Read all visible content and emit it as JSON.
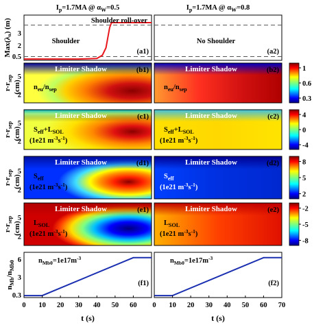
{
  "chart_data": {
    "type": "heatmap",
    "titles": {
      "left": {
        "main": "I",
        "sub": "p",
        "rest": "=1.7MA @ α",
        "sub2": "W",
        "tail": "=0.5"
      },
      "right": {
        "main": "I",
        "sub": "p",
        "rest": "=1.7MA @ α",
        "sub2": "W",
        "tail": "=0.8"
      }
    },
    "x_axis": {
      "label": "t (s)",
      "range": [
        0,
        70
      ],
      "ticks_left": [
        "0",
        "10",
        "20",
        "30",
        "40",
        "50",
        "60"
      ],
      "ticks_right": [
        "0",
        "10",
        "20",
        "30",
        "40",
        "50",
        "60",
        "70"
      ],
      "tick_values": [
        0,
        10,
        20,
        30,
        40,
        50,
        60,
        70
      ]
    },
    "row_a": {
      "ylabel": "Max(λn) (m)",
      "ylabel_main": "Max(λ",
      "ylabel_sub": "n",
      "ylabel_tail": ") (m)",
      "yticks": [
        "0.5",
        "2",
        "3"
      ],
      "ytick_values": [
        0.5,
        2,
        3
      ],
      "ylim": [
        0.2,
        3.8
      ],
      "dashed_levels": [
        0.5,
        3.0
      ],
      "left": {
        "label": "(a1)",
        "annotation_top": "Shoulder roll-over",
        "annotation_mid": "Shoulder",
        "series": {
          "color": "#e8141a",
          "x": [
            0,
            30,
            40,
            43,
            45,
            46,
            47,
            48,
            50,
            60,
            70
          ],
          "y": [
            0.3,
            0.3,
            0.35,
            0.6,
            1.2,
            2.0,
            2.8,
            3.2,
            3.2,
            3.2,
            3.2
          ]
        }
      },
      "right": {
        "label": "(a2)",
        "annotation_mid": "No Shoulder"
      }
    },
    "heatmap_rows": [
      {
        "id": "b",
        "shadow_label": "Limiter Shadow",
        "ylabel": "r-rsep (cm)",
        "yticks": [
          "5",
          "2"
        ],
        "ytick_values": [
          5,
          2
        ],
        "colorbar_ticks": [
          "1",
          "0.6",
          "0.3"
        ],
        "colorbar_values": [
          1,
          0.6,
          0.3
        ],
        "left": {
          "label": "(b1)",
          "quantity": "neu/nsep",
          "unit": ""
        },
        "right": {
          "label": "(b2)",
          "quantity": "neu/nsep",
          "unit": ""
        }
      },
      {
        "id": "c",
        "shadow_label": "Limiter Shadow",
        "ylabel": "r-rsep (cm)",
        "yticks": [
          "5",
          "2"
        ],
        "ytick_values": [
          5,
          2
        ],
        "colorbar_ticks": [
          "4",
          "0",
          "-4"
        ],
        "colorbar_values": [
          4,
          0,
          -4
        ],
        "left": {
          "label": "(c1)",
          "quantity": "Seff+LSOL",
          "unit": "(1e21 m-3s-1)"
        },
        "right": {
          "label": "(c2)",
          "quantity": "Seff+LSOL",
          "unit": "(1e21 m-3s-1)"
        }
      },
      {
        "id": "d",
        "shadow_label": "Limiter Shadow",
        "ylabel": "r-rsep (cm)",
        "yticks": [
          "5",
          "2"
        ],
        "ytick_values": [
          5,
          2
        ],
        "colorbar_ticks": [
          "8",
          "5",
          "2"
        ],
        "colorbar_values": [
          8,
          5,
          2
        ],
        "left": {
          "label": "(d1)",
          "quantity": "Seff",
          "unit": "(1e21 m-3s-1)"
        },
        "right": {
          "label": "(d2)",
          "quantity": "Seff",
          "unit": "(1e21 m-3s-1)"
        }
      },
      {
        "id": "e",
        "shadow_label": "Limiter Shadow",
        "ylabel": "r-rsep (cm)",
        "yticks": [
          "5",
          "2"
        ],
        "ytick_values": [
          5,
          2
        ],
        "colorbar_ticks": [
          "-2",
          "-5",
          "-8"
        ],
        "colorbar_values": [
          -2,
          -5,
          -8
        ],
        "left": {
          "label": "(e1)",
          "quantity": "LSOL",
          "unit": "(1e21 m-3s-1)"
        },
        "right": {
          "label": "(e2)",
          "quantity": "LSOL",
          "unit": "(1e21 m-3s-1)"
        }
      }
    ],
    "row_f": {
      "ylabel": "nMb/nMb0",
      "yticks": [
        "6",
        "3",
        "0.3"
      ],
      "ytick_values": [
        6,
        3,
        0.3
      ],
      "ylim": [
        0,
        6.8
      ],
      "left": {
        "label": "(f1)",
        "annotation": "nMb0=1e17m-3"
      },
      "right": {
        "label": "(f2)",
        "annotation": "nMb0=1e17m-3"
      },
      "series": {
        "color": "#1a2fb0",
        "x": [
          0,
          10,
          60,
          70
        ],
        "y": [
          0.3,
          0.3,
          6.0,
          6.0
        ]
      }
    }
  }
}
